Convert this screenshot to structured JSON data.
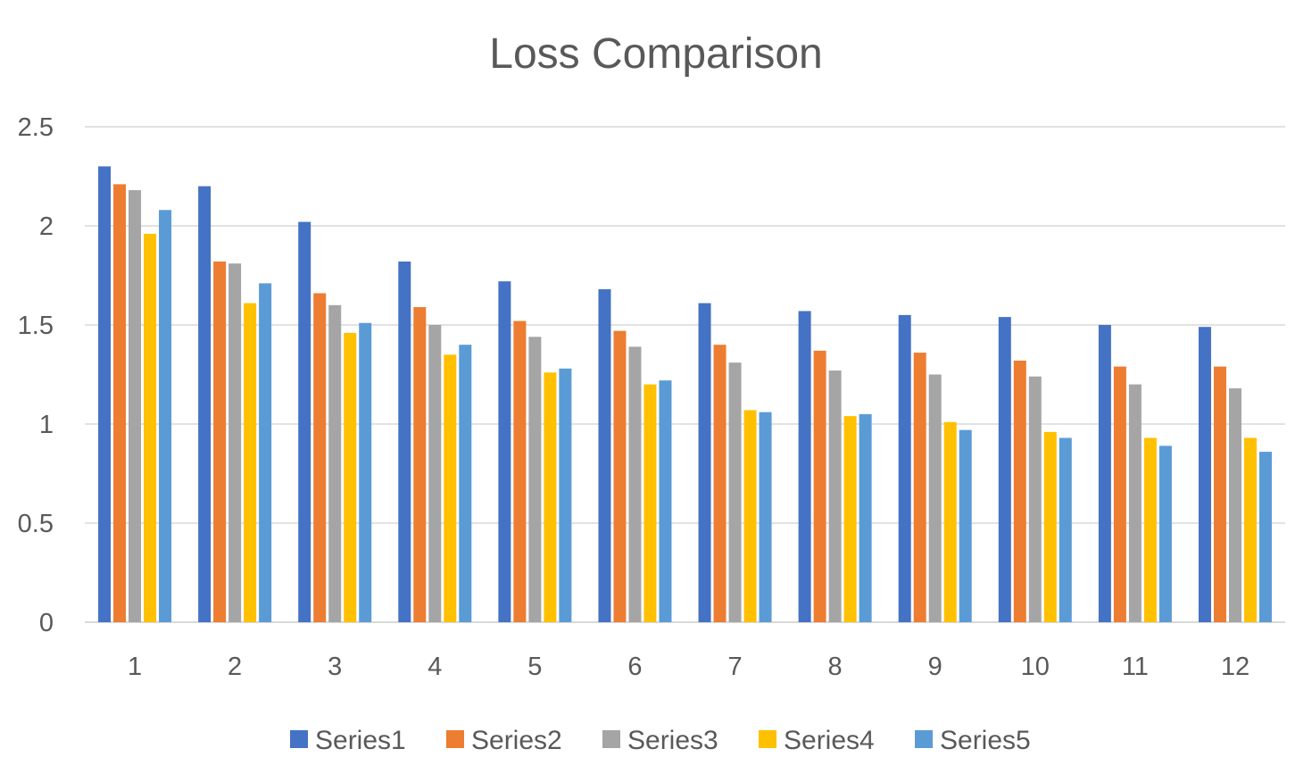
{
  "chart_data": {
    "type": "bar",
    "title": "Loss Comparison",
    "xlabel": "",
    "ylabel": "",
    "ylim": [
      0,
      2.5
    ],
    "y_ticks": [
      "0",
      "0.5",
      "1",
      "1.5",
      "2",
      "2.5"
    ],
    "y_tick_values": [
      0,
      0.5,
      1,
      1.5,
      2,
      2.5
    ],
    "categories": [
      "1",
      "2",
      "3",
      "4",
      "5",
      "6",
      "7",
      "8",
      "9",
      "10",
      "11",
      "12"
    ],
    "grid": true,
    "legend_position": "bottom",
    "series": [
      {
        "name": "Series1",
        "color": "#4472c4",
        "values": [
          2.3,
          2.2,
          2.02,
          1.82,
          1.72,
          1.68,
          1.61,
          1.57,
          1.55,
          1.54,
          1.5,
          1.49
        ]
      },
      {
        "name": "Series2",
        "color": "#ed7d31",
        "values": [
          2.21,
          1.82,
          1.66,
          1.59,
          1.52,
          1.47,
          1.4,
          1.37,
          1.36,
          1.32,
          1.29,
          1.29
        ]
      },
      {
        "name": "Series3",
        "color": "#a5a5a5",
        "values": [
          2.18,
          1.81,
          1.6,
          1.5,
          1.44,
          1.39,
          1.31,
          1.27,
          1.25,
          1.24,
          1.2,
          1.18
        ]
      },
      {
        "name": "Series4",
        "color": "#ffc000",
        "values": [
          1.96,
          1.61,
          1.46,
          1.35,
          1.26,
          1.2,
          1.07,
          1.04,
          1.01,
          0.96,
          0.93,
          0.93
        ]
      },
      {
        "name": "Series5",
        "color": "#5b9bd5",
        "values": [
          2.08,
          1.71,
          1.51,
          1.4,
          1.28,
          1.22,
          1.06,
          1.05,
          0.97,
          0.93,
          0.89,
          0.86
        ]
      }
    ]
  }
}
